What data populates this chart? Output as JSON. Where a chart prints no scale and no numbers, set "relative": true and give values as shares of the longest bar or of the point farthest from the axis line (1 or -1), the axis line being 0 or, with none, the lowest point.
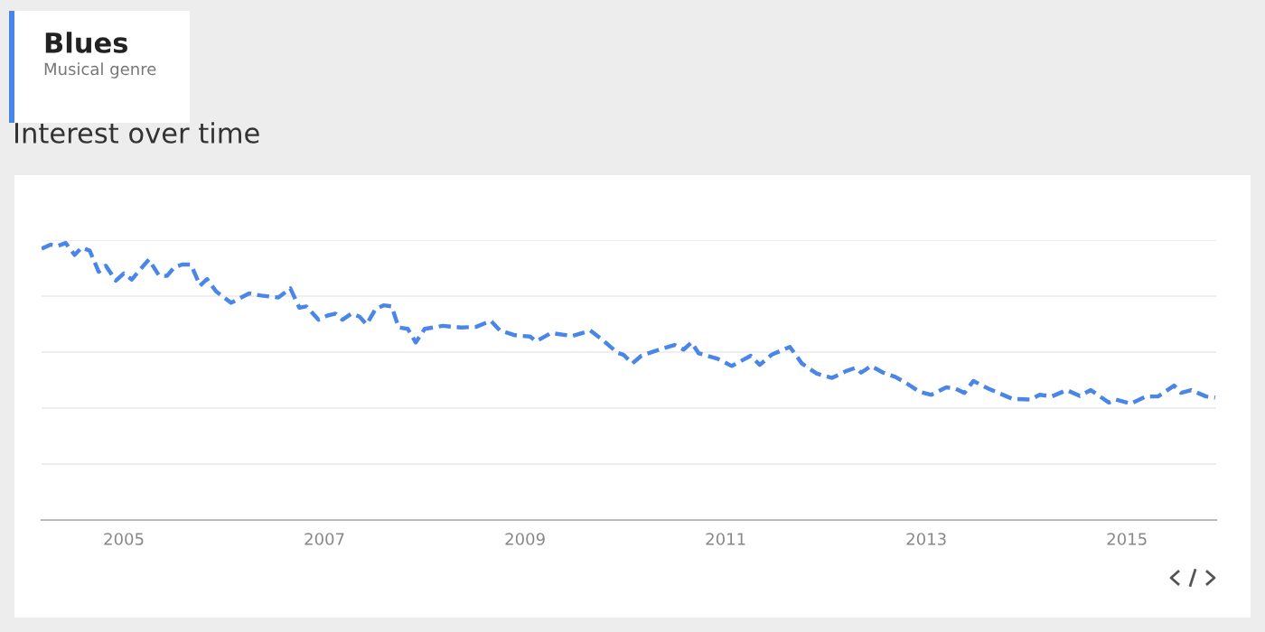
{
  "chart_data": {
    "type": "line",
    "title": "Blues",
    "subtitle": "Musical genre",
    "annotations": [
      "Interest over time"
    ],
    "relative": true,
    "x": [
      2004.18,
      2004.27,
      2004.34,
      2004.42,
      2004.51,
      2004.58,
      2004.66,
      2004.75,
      2004.82,
      2004.92,
      2005.0,
      2005.08,
      2005.17,
      2005.25,
      2005.35,
      2005.43,
      2005.5,
      2005.58,
      2005.67,
      2005.76,
      2005.83,
      2005.92,
      2006.07,
      2006.25,
      2006.37,
      2006.54,
      2006.66,
      2006.75,
      2006.82,
      2006.94,
      2007.03,
      2007.11,
      2007.18,
      2007.27,
      2007.35,
      2007.42,
      2007.51,
      2007.59,
      2007.67,
      2007.74,
      2007.83,
      2007.91,
      2008.0,
      2008.18,
      2008.36,
      2008.51,
      2008.66,
      2008.75,
      2008.9,
      2009.05,
      2009.11,
      2009.26,
      2009.47,
      2009.65,
      2009.77,
      2009.92,
      2009.98,
      2010.07,
      2010.16,
      2010.37,
      2010.49,
      2010.58,
      2010.66,
      2010.73,
      2010.92,
      2011.06,
      2011.25,
      2011.34,
      2011.46,
      2011.64,
      2011.76,
      2011.91,
      2012.06,
      2012.21,
      2012.3,
      2012.35,
      2012.45,
      2012.57,
      2012.69,
      2012.81,
      2012.93,
      2013.05,
      2013.2,
      2013.29,
      2013.38,
      2013.47,
      2013.62,
      2013.86,
      2014.04,
      2014.13,
      2014.25,
      2014.4,
      2014.53,
      2014.64,
      2014.82,
      2014.89,
      2015.04,
      2015.19,
      2015.31,
      2015.47,
      2015.54,
      2015.64,
      2015.79,
      2015.88
    ],
    "series": [
      {
        "color": "#4a86e8",
        "values": [
          0.979,
          0.994,
          0.989,
          1.0,
          0.957,
          0.983,
          0.972,
          0.896,
          0.918,
          0.864,
          0.89,
          0.868,
          0.907,
          0.94,
          0.883,
          0.881,
          0.911,
          0.922,
          0.922,
          0.846,
          0.87,
          0.825,
          0.784,
          0.818,
          0.81,
          0.803,
          0.836,
          0.766,
          0.771,
          0.723,
          0.738,
          0.745,
          0.723,
          0.745,
          0.734,
          0.706,
          0.762,
          0.775,
          0.771,
          0.695,
          0.69,
          0.641,
          0.69,
          0.701,
          0.695,
          0.697,
          0.719,
          0.684,
          0.667,
          0.662,
          0.645,
          0.675,
          0.664,
          0.684,
          0.651,
          0.604,
          0.597,
          0.565,
          0.593,
          0.619,
          0.632,
          0.615,
          0.641,
          0.602,
          0.582,
          0.556,
          0.593,
          0.56,
          0.597,
          0.625,
          0.565,
          0.528,
          0.513,
          0.539,
          0.55,
          0.532,
          0.556,
          0.532,
          0.517,
          0.492,
          0.463,
          0.452,
          0.479,
          0.474,
          0.459,
          0.502,
          0.474,
          0.437,
          0.435,
          0.452,
          0.446,
          0.469,
          0.448,
          0.469,
          0.424,
          0.435,
          0.42,
          0.446,
          0.446,
          0.485,
          0.459,
          0.469,
          0.446,
          0.442
        ]
      }
    ],
    "xlim": [
      2004.18,
      2015.89
    ],
    "xticks": [
      2005,
      2007,
      2009,
      2011,
      2013,
      2015
    ],
    "grid": "y",
    "line_style": "dashed",
    "marker": "none",
    "legend": false
  }
}
